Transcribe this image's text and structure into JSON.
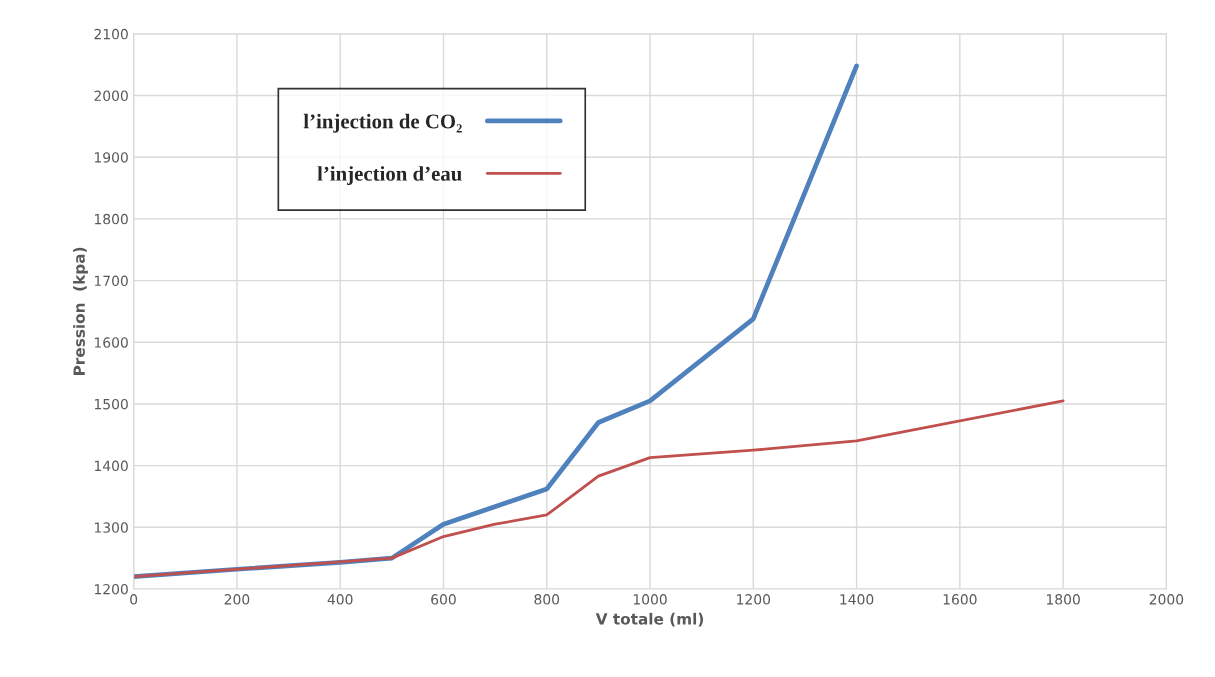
{
  "chart_data": {
    "type": "line",
    "xlabel": "V totale (ml)",
    "ylabel": "Pression  (kpa)",
    "xlim": [
      0,
      2000
    ],
    "xticks": [
      0,
      200,
      400,
      600,
      800,
      1000,
      1200,
      1400,
      1600,
      1800,
      2000
    ],
    "ylim": [
      1200,
      2100
    ],
    "yticks": [
      1200,
      1300,
      1400,
      1500,
      1600,
      1700,
      1800,
      1900,
      2000,
      2100
    ],
    "grid": true,
    "legend": "top left",
    "marker": "none",
    "line_style": "solid",
    "series": [
      {
        "name": "l’injection de CO₂",
        "color": "#4f81bd",
        "x": [
          0,
          200,
          400,
          500,
          600,
          800,
          900,
          1000,
          1200,
          1400
        ],
        "values": [
          1220,
          1232,
          1243,
          1250,
          1305,
          1362,
          1470,
          1505,
          1638,
          2048
        ]
      },
      {
        "name": "l’injection d’eau",
        "color": "#c0504d",
        "x": [
          0,
          500,
          600,
          700,
          800,
          900,
          1000,
          1200,
          1400,
          1800
        ],
        "values": [
          1220,
          1250,
          1285,
          1305,
          1320,
          1383,
          1413,
          1425,
          1440,
          1505
        ]
      }
    ]
  }
}
